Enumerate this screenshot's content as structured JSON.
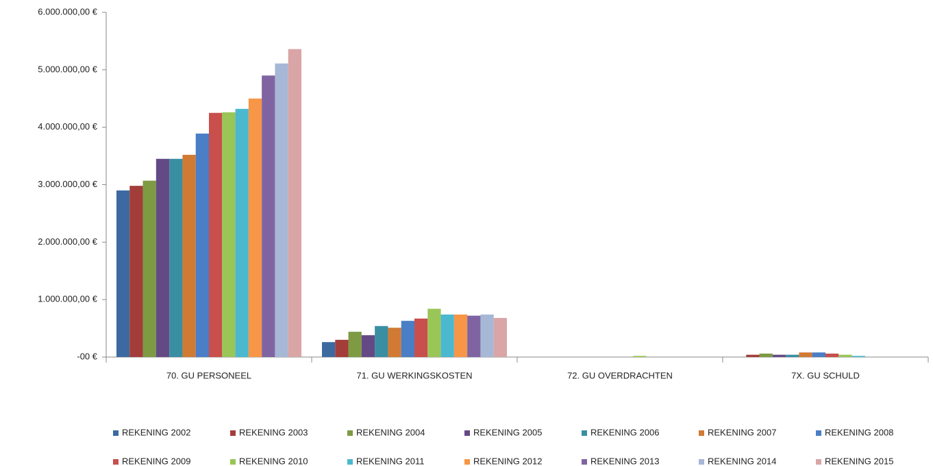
{
  "chart_data": {
    "type": "bar",
    "categories": [
      "70. GU PERSONEEL",
      "71. GU WERKINGSKOSTEN",
      "72. GU OVERDRACHTEN",
      "7X. GU SCHULD"
    ],
    "series": [
      {
        "name": "REKENING 2002",
        "color": "#3c6aa0",
        "values": [
          2900000,
          260000,
          0,
          0
        ]
      },
      {
        "name": "REKENING 2003",
        "color": "#a33d3a",
        "values": [
          2980000,
          300000,
          0,
          40000
        ]
      },
      {
        "name": "REKENING 2004",
        "color": "#7e9a43",
        "values": [
          3070000,
          440000,
          0,
          60000
        ]
      },
      {
        "name": "REKENING 2005",
        "color": "#644a85",
        "values": [
          3450000,
          380000,
          0,
          40000
        ]
      },
      {
        "name": "REKENING 2006",
        "color": "#3a8ea2",
        "values": [
          3450000,
          540000,
          0,
          40000
        ]
      },
      {
        "name": "REKENING 2007",
        "color": "#d07a33",
        "values": [
          3520000,
          510000,
          0,
          80000
        ]
      },
      {
        "name": "REKENING 2008",
        "color": "#4a7ec6",
        "values": [
          3890000,
          630000,
          0,
          80000
        ]
      },
      {
        "name": "REKENING 2009",
        "color": "#c84f4c",
        "values": [
          4250000,
          670000,
          0,
          60000
        ]
      },
      {
        "name": "REKENING 2010",
        "color": "#99c657",
        "values": [
          4260000,
          840000,
          20000,
          40000
        ]
      },
      {
        "name": "REKENING 2011",
        "color": "#4bb8d0",
        "values": [
          4320000,
          740000,
          0,
          20000
        ]
      },
      {
        "name": "REKENING 2012",
        "color": "#f79646",
        "values": [
          4500000,
          740000,
          0,
          0
        ]
      },
      {
        "name": "REKENING 2013",
        "color": "#8064a2",
        "values": [
          4900000,
          720000,
          0,
          0
        ]
      },
      {
        "name": "REKENING 2014",
        "color": "#a7b7d6",
        "values": [
          5110000,
          740000,
          0,
          0
        ]
      },
      {
        "name": "REKENING 2015",
        "color": "#d9a5a6",
        "values": [
          5360000,
          680000,
          0,
          0
        ]
      }
    ],
    "ylim": [
      0,
      6000000
    ],
    "yticks": [
      {
        "value": 0,
        "label": "-00 €"
      },
      {
        "value": 1000000,
        "label": "1.000.000,00 €"
      },
      {
        "value": 2000000,
        "label": "2.000.000,00 €"
      },
      {
        "value": 3000000,
        "label": "3.000.000,00 €"
      },
      {
        "value": 4000000,
        "label": "4.000.000,00 €"
      },
      {
        "value": 5000000,
        "label": "5.000.000,00 €"
      },
      {
        "value": 6000000,
        "label": "6.000.000,00 €"
      }
    ],
    "grid": false,
    "legend": "bottom"
  }
}
